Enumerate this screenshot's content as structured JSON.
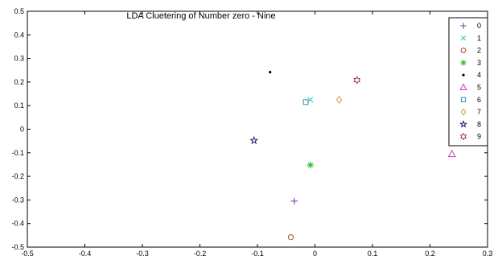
{
  "chart_data": {
    "type": "scatter",
    "title": "LDA Cluetering of Number zero - Nine",
    "xlabel": "",
    "ylabel": "",
    "xlim": [
      -0.5,
      0.3
    ],
    "ylim": [
      -0.5,
      0.5
    ],
    "xticks": [
      -0.5,
      -0.4,
      -0.3,
      -0.2,
      -0.1,
      0,
      0.1,
      0.2,
      0.3
    ],
    "xtick_labels": [
      "-0.5",
      "-0.4",
      "-0.3",
      "-0.2",
      "-0.1",
      "0",
      "0.1",
      "0.2",
      "0.3"
    ],
    "yticks": [
      0.5,
      0.4,
      0.3,
      0.2,
      0.1,
      0,
      -0.1,
      -0.2,
      -0.3,
      -0.4,
      -0.5
    ],
    "ytick_labels": [
      "0.5",
      "0.4",
      "0.3",
      "0.2",
      "0.1",
      "0",
      "-0.1",
      "-0.2",
      "-0.3",
      "-0.4",
      "-0.5"
    ],
    "grid": false,
    "legend_position": "top-right",
    "series": [
      {
        "name": "0",
        "marker": "plus",
        "color": "#7b2fa8",
        "x": [
          -0.036
        ],
        "y": [
          -0.305
        ]
      },
      {
        "name": "1",
        "marker": "x",
        "color": "#2ec4c4",
        "x": [
          -0.008
        ],
        "y": [
          0.125
        ]
      },
      {
        "name": "2",
        "marker": "circle",
        "color": "#b0413e",
        "x": [
          -0.042
        ],
        "y": [
          -0.458
        ]
      },
      {
        "name": "3",
        "marker": "asterisk",
        "color": "#22c022",
        "x": [
          -0.008
        ],
        "y": [
          -0.152
        ]
      },
      {
        "name": "4",
        "marker": "dot",
        "color": "#000000",
        "x": [
          -0.078
        ],
        "y": [
          0.242
        ]
      },
      {
        "name": "5",
        "marker": "triangle",
        "color": "#c040c0",
        "x": [
          0.238
        ],
        "y": [
          -0.105
        ]
      },
      {
        "name": "6",
        "marker": "square",
        "color": "#2a8fa8",
        "x": [
          -0.016
        ],
        "y": [
          0.115
        ]
      },
      {
        "name": "7",
        "marker": "diamond",
        "color": "#c8a040",
        "x": [
          0.042
        ],
        "y": [
          0.125
        ]
      },
      {
        "name": "8",
        "marker": "pentagram",
        "color": "#1a1a7a",
        "x": [
          -0.106
        ],
        "y": [
          -0.048
        ]
      },
      {
        "name": "9",
        "marker": "hexagram",
        "color": "#a04040",
        "x": [
          0.073
        ],
        "y": [
          0.208
        ]
      }
    ]
  }
}
